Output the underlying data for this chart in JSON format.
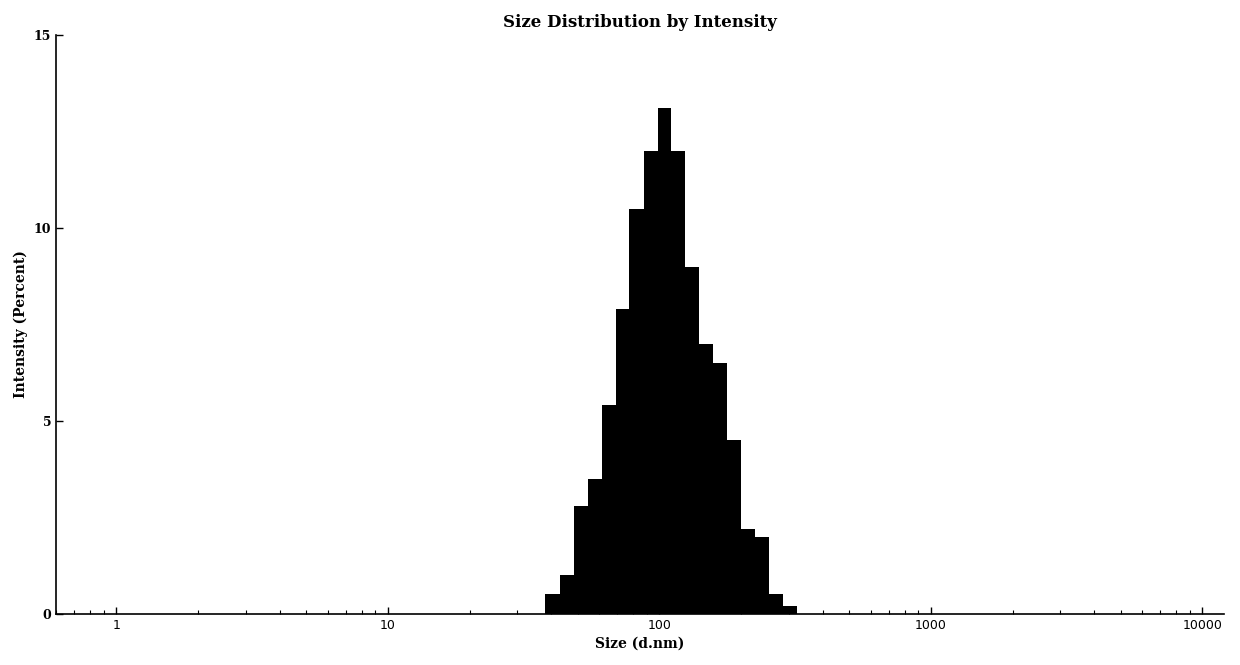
{
  "title": "Size Distribution by Intensity",
  "xlabel": "Size (d.nm)",
  "ylabel": "Intensity (Percent)",
  "bar_color": "#000000",
  "background_color": "#ffffff",
  "xlim_log": [
    0.6,
    12000
  ],
  "ylim": [
    0,
    15
  ],
  "yticks": [
    0,
    5,
    10,
    15
  ],
  "xtick_values": [
    1,
    10,
    100,
    1000,
    10000
  ],
  "log_bin_edges": [
    38.0,
    43.0,
    48.5,
    54.5,
    61.5,
    69.0,
    77.5,
    87.5,
    98.5,
    110.5,
    124.5,
    140.0,
    157.5,
    177.5,
    200.0,
    225.0,
    253.5,
    285.5,
    321.5
  ],
  "bar_heights": [
    0.5,
    1.0,
    2.8,
    3.5,
    5.4,
    7.9,
    10.5,
    12.0,
    13.1,
    12.0,
    9.0,
    7.0,
    6.5,
    4.5,
    2.2,
    2.0,
    0.5,
    0.2
  ],
  "title_fontsize": 12,
  "label_fontsize": 10,
  "tick_fontsize": 9
}
